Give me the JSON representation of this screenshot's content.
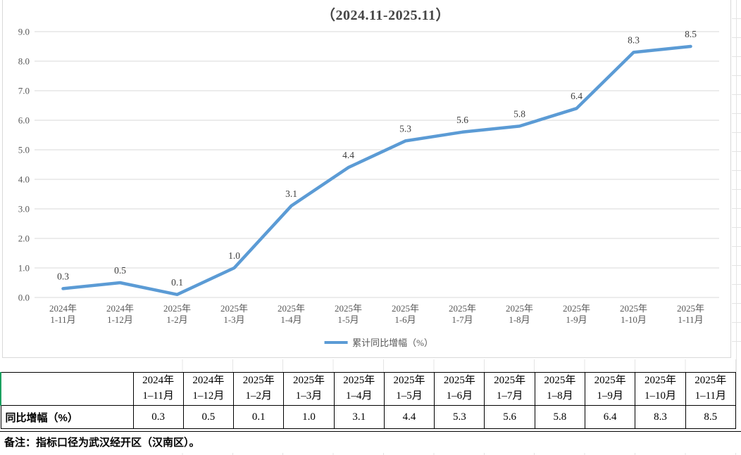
{
  "chart_data": {
    "type": "line",
    "title": "（2024.11-2025.11）",
    "categories": [
      [
        "2024年",
        "1-11月"
      ],
      [
        "2024年",
        "1-12月"
      ],
      [
        "2025年",
        "1-2月"
      ],
      [
        "2025年",
        "1-3月"
      ],
      [
        "2025年",
        "1-4月"
      ],
      [
        "2025年",
        "1-5月"
      ],
      [
        "2025年",
        "1-6月"
      ],
      [
        "2025年",
        "1-7月"
      ],
      [
        "2025年",
        "1-8月"
      ],
      [
        "2025年",
        "1-9月"
      ],
      [
        "2025年",
        "1-10月"
      ],
      [
        "2025年",
        "1-11月"
      ]
    ],
    "series": [
      {
        "name": "累计同比增幅（%）",
        "values": [
          0.3,
          0.5,
          0.1,
          1.0,
          3.1,
          4.4,
          5.3,
          5.6,
          5.8,
          6.4,
          8.3,
          8.5
        ],
        "labels": [
          "0.3",
          "0.5",
          "0.1",
          "1.0",
          "3.1",
          "4.4",
          "5.3",
          "5.6",
          "5.8",
          "6.4",
          "8.3",
          "8.5"
        ],
        "color": "#5B9BD5"
      }
    ],
    "ylim": [
      0.0,
      9.0
    ],
    "ytick_step": 1.0,
    "ytick_labels": [
      "0.0",
      "1.0",
      "2.0",
      "3.0",
      "4.0",
      "5.0",
      "6.0",
      "7.0",
      "8.0",
      "9.0"
    ],
    "grid": true,
    "legend_position": "bottom"
  },
  "table": {
    "header": [
      [
        "2024年",
        "1–11月"
      ],
      [
        "2024年",
        "1–12月"
      ],
      [
        "2025年",
        "1–2月"
      ],
      [
        "2025年",
        "1–3月"
      ],
      [
        "2025年",
        "1–4月"
      ],
      [
        "2025年",
        "1–5月"
      ],
      [
        "2025年",
        "1–6月"
      ],
      [
        "2025年",
        "1–7月"
      ],
      [
        "2025年",
        "1–8月"
      ],
      [
        "2025年",
        "1–9月"
      ],
      [
        "2025年",
        "1–10月"
      ],
      [
        "2025年",
        "1–11月"
      ]
    ],
    "row_label": "同比增幅（%）",
    "values": [
      "0.3",
      "0.5",
      "0.1",
      "1.0",
      "3.1",
      "4.4",
      "5.3",
      "5.6",
      "5.8",
      "6.4",
      "8.3",
      "8.5"
    ],
    "note": "备注：指标口径为武汉经开区（汉南区）。"
  },
  "colors": {
    "series_line": "#5B9BD5",
    "chart_grid": "#D9D9D9",
    "axis_text": "#595959",
    "data_label_text": "#3F3F3F",
    "chart_title_text": "#454545",
    "table_border": "#000000",
    "header_left_accent": "#1AA05F",
    "sheet_gridline": "#E4E4E4"
  }
}
